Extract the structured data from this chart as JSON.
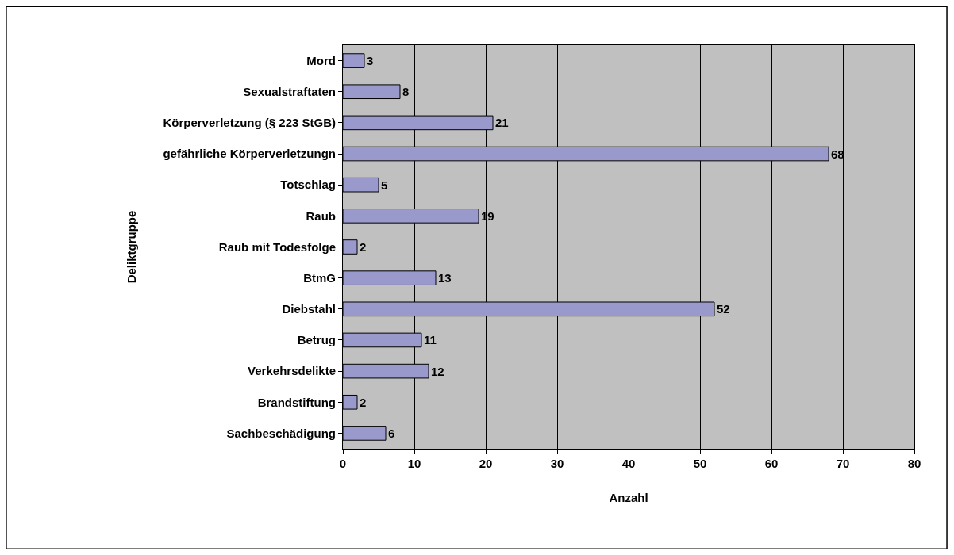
{
  "chart_data": {
    "type": "bar",
    "orientation": "horizontal",
    "xlabel": "Anzahl",
    "ylabel": "Deliktgruppe",
    "categories": [
      "Mord",
      "Sexualstraftaten",
      "Körperverletzung (§ 223 StGB)",
      "gefährliche Körperverletzungn",
      "Totschlag",
      "Raub",
      "Raub mit Todesfolge",
      "BtmG",
      "Diebstahl",
      "Betrug",
      "Verkehrsdelikte",
      "Brandstiftung",
      "Sachbeschädigung"
    ],
    "values": [
      3,
      8,
      21,
      68,
      5,
      19,
      2,
      13,
      52,
      11,
      12,
      2,
      6
    ],
    "color": "#9999cc",
    "xlim": [
      0,
      80
    ],
    "xticks": [
      0,
      10,
      20,
      30,
      40,
      50,
      60,
      70,
      80
    ],
    "grid": "x",
    "data_labels": true
  }
}
